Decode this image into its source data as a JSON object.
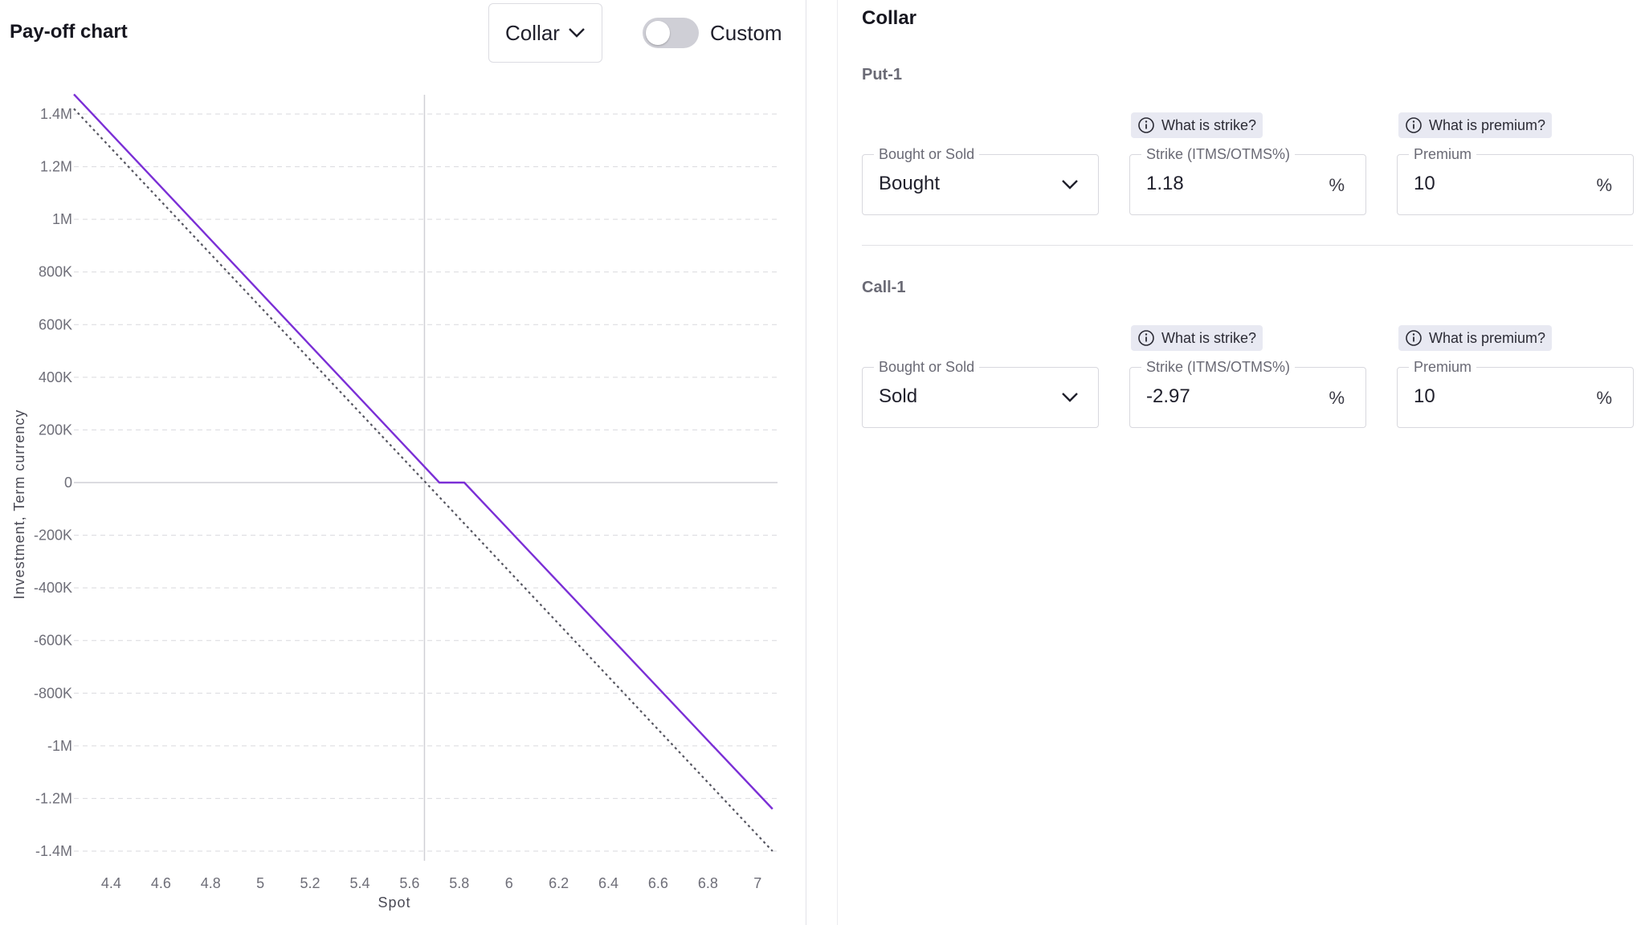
{
  "header": {
    "title": "Pay-off chart",
    "strategy_select": {
      "value": "Collar"
    },
    "toggle": {
      "label": "Custom",
      "checked": false
    }
  },
  "chart_data": {
    "type": "line",
    "xlabel": "Spot",
    "ylabel": "Investment, Term currency",
    "x_ticks": [
      "4.4",
      "4.6",
      "4.8",
      "5",
      "5.2",
      "5.4",
      "5.6",
      "5.8",
      "6",
      "6.2",
      "6.4",
      "6.6",
      "6.8",
      "7"
    ],
    "y_ticks": [
      "1.4M",
      "1.2M",
      "1M",
      "800K",
      "600K",
      "400K",
      "200K",
      "0",
      "-200K",
      "-400K",
      "-600K",
      "-800K",
      "-1M",
      "-1.2M",
      "-1.4M"
    ],
    "xlim": [
      4.25,
      7.08
    ],
    "ylim": [
      -1400000,
      1400000
    ],
    "grid": true,
    "reference_x": 5.66,
    "series": [
      {
        "color": "#7b2fd6",
        "style": "solid",
        "x": [
          4.25,
          5.72,
          5.82,
          7.06
        ],
        "y": [
          1475000,
          0,
          0,
          -1240000
        ]
      },
      {
        "color": "#555560",
        "style": "dotted",
        "x": [
          4.25,
          7.06
        ],
        "y": [
          1420000,
          -1400000
        ]
      }
    ]
  },
  "collar": {
    "title": "Collar",
    "legs": [
      {
        "title": "Put-1",
        "side": {
          "label": "Bought or Sold",
          "value": "Bought"
        },
        "strike": {
          "help": "What is strike?",
          "label": "Strike (ITMS/OTMS%)",
          "value": "1.18",
          "suffix": "%"
        },
        "premium": {
          "help": "What is premium?",
          "label": "Premium",
          "value": "10",
          "suffix": "%"
        }
      },
      {
        "title": "Call-1",
        "side": {
          "label": "Bought or Sold",
          "value": "Sold"
        },
        "strike": {
          "help": "What is strike?",
          "label": "Strike (ITMS/OTMS%)",
          "value": "-2.97",
          "suffix": "%"
        },
        "premium": {
          "help": "What is premium?",
          "label": "Premium",
          "value": "10",
          "suffix": "%"
        }
      }
    ]
  }
}
